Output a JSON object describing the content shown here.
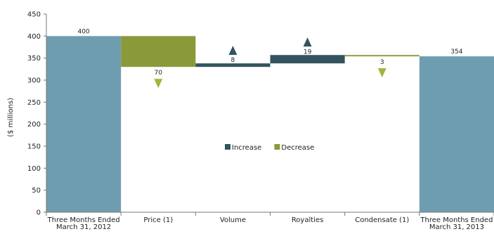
{
  "chart_data": {
    "type": "bar",
    "subtype": "waterfall",
    "ylabel": "($ millions)",
    "ylim": [
      0,
      450
    ],
    "yticks": [
      0,
      50,
      100,
      150,
      200,
      250,
      300,
      350,
      400,
      450
    ],
    "categories": [
      [
        "Three Months Ended",
        "March 31, 2012"
      ],
      [
        "Price (1)"
      ],
      [
        "Volume"
      ],
      [
        "Royalties"
      ],
      [
        "Condensate (1)"
      ],
      [
        "Three Months Ended",
        "March 31, 2013"
      ]
    ],
    "bars": [
      {
        "kind": "total",
        "start": 0,
        "end": 400,
        "label": "400"
      },
      {
        "kind": "decrease",
        "start": 400,
        "end": 330,
        "label": "70"
      },
      {
        "kind": "increase",
        "start": 330,
        "end": 338,
        "label": "8"
      },
      {
        "kind": "increase",
        "start": 338,
        "end": 357,
        "label": "19"
      },
      {
        "kind": "decrease",
        "start": 357,
        "end": 354,
        "label": "3"
      },
      {
        "kind": "total",
        "start": 0,
        "end": 354,
        "label": "354"
      }
    ],
    "legend": {
      "position": "center",
      "items": [
        {
          "name": "Increase",
          "color": "#33545e"
        },
        {
          "name": "Decrease",
          "color": "#8a9a3a"
        }
      ]
    },
    "colors": {
      "total": "#6f9db0",
      "increase": "#33545e",
      "decrease": "#8a9a3a",
      "up_arrow": "#33545e",
      "down_arrow": "#a4b43a"
    },
    "grid": false
  }
}
